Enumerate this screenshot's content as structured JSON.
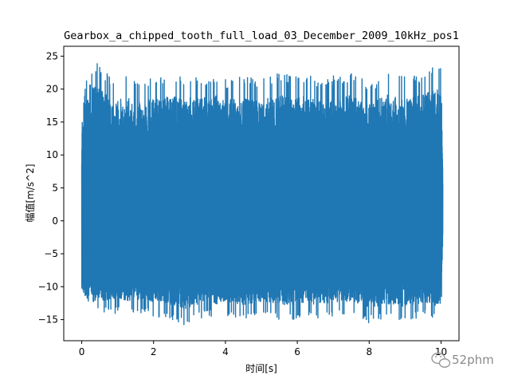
{
  "chart_data": {
    "type": "line",
    "title": "Gearbox_a_chipped_tooth_full_load_03_December_2009_10kHz_pos1",
    "xlabel": "时间[s]",
    "ylabel": "幅值[m/s^2]",
    "xlim": [
      -0.5,
      10.5
    ],
    "ylim": [
      -18.2,
      26.5
    ],
    "x_ticks": [
      0,
      2,
      4,
      6,
      8,
      10
    ],
    "x_tick_labels": [
      "0",
      "2",
      "4",
      "6",
      "8",
      "10"
    ],
    "y_ticks": [
      -15,
      -10,
      -5,
      0,
      5,
      10,
      15,
      20,
      25
    ],
    "y_tick_labels": [
      "−15",
      "−10",
      "−5",
      "0",
      "5",
      "10",
      "15",
      "20",
      "25"
    ],
    "grid": false,
    "legend": "none",
    "series_color": "#1f77b4",
    "sample_rate_hz": 10000,
    "envelope": {
      "x": [
        0.0,
        0.05,
        0.12,
        0.25,
        0.33,
        0.5,
        0.8,
        1.0,
        1.3,
        1.5,
        2.0,
        2.5,
        2.9,
        3.0,
        3.5,
        3.7,
        4.0,
        4.5,
        5.0,
        5.5,
        6.0,
        6.3,
        6.5,
        7.0,
        7.5,
        8.0,
        8.5,
        9.0,
        9.5,
        10.0,
        10.05
      ],
      "upper": [
        15.5,
        18.5,
        22.5,
        21.0,
        24.5,
        23.5,
        22.0,
        21.5,
        22.5,
        21.0,
        22.0,
        22.5,
        21.5,
        22.0,
        22.0,
        22.5,
        21.5,
        22.0,
        21.5,
        22.5,
        22.0,
        22.5,
        21.5,
        22.0,
        22.5,
        21.0,
        22.5,
        22.0,
        22.5,
        24.0,
        9.0
      ],
      "lower": [
        -12.0,
        -13.5,
        -15.0,
        -14.0,
        -14.5,
        -14.0,
        -14.5,
        -14.0,
        -14.5,
        -14.0,
        -14.5,
        -15.0,
        -16.2,
        -15.5,
        -14.5,
        -15.0,
        -14.5,
        -15.0,
        -14.5,
        -15.0,
        -15.0,
        -14.5,
        -15.0,
        -14.5,
        -14.5,
        -15.5,
        -15.0,
        -15.5,
        -14.5,
        -15.5,
        -3.0
      ]
    }
  },
  "watermark": {
    "icon": "wechat-icon",
    "text": "52phm"
  }
}
